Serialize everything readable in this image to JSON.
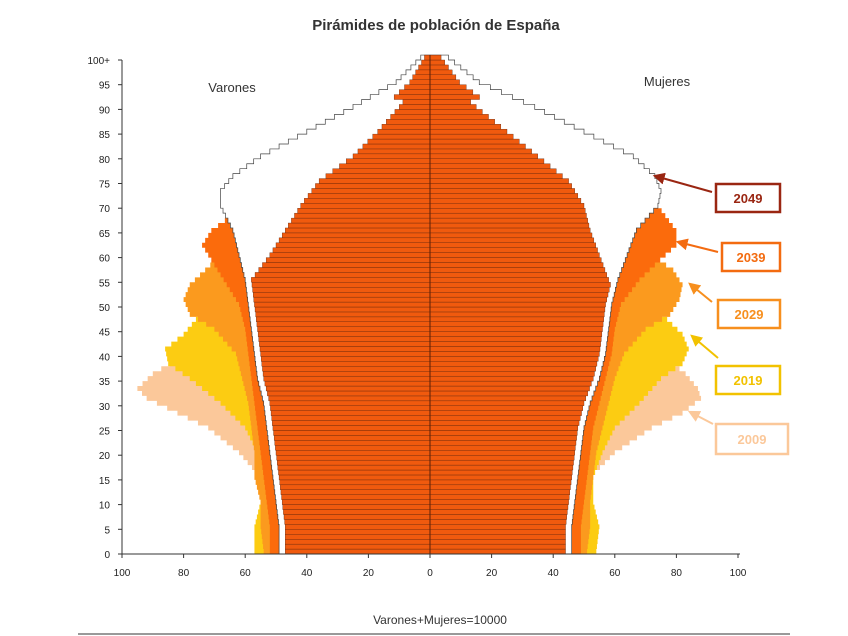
{
  "chart_data": {
    "type": "bar",
    "subtype": "population-pyramid",
    "title": "Pirámides de población de España",
    "left_label": "Varones",
    "right_label": "Mujeres",
    "xlabel": "Varones+Mujeres=10000",
    "xlim": [
      -100,
      100
    ],
    "ylim": [
      0,
      100
    ],
    "x_ticks": [
      "100",
      "80",
      "60",
      "40",
      "20",
      "0",
      "20",
      "40",
      "60",
      "80",
      "100"
    ],
    "y_ticks": [
      "0",
      "5",
      "10",
      "15",
      "20",
      "25",
      "30",
      "35",
      "40",
      "45",
      "50",
      "55",
      "60",
      "65",
      "70",
      "75",
      "80",
      "85",
      "90",
      "95",
      "100+"
    ],
    "series": [
      {
        "name": "2009",
        "color": "#fbc89a",
        "label_color": "#fbc89a",
        "males": [
          [
            0,
            55
          ],
          [
            5,
            55
          ],
          [
            10,
            53
          ],
          [
            15,
            55
          ],
          [
            20,
            62
          ],
          [
            25,
            72
          ],
          [
            28,
            82
          ],
          [
            31,
            92
          ],
          [
            33,
            95
          ],
          [
            36,
            90
          ],
          [
            40,
            79
          ],
          [
            45,
            70
          ],
          [
            50,
            65
          ],
          [
            55,
            58
          ],
          [
            60,
            52
          ],
          [
            65,
            47
          ],
          [
            70,
            42
          ],
          [
            75,
            36
          ],
          [
            80,
            25
          ],
          [
            85,
            17
          ],
          [
            90,
            10
          ],
          [
            95,
            4
          ],
          [
            100,
            1
          ]
        ],
        "females": [
          [
            0,
            52
          ],
          [
            5,
            53
          ],
          [
            10,
            51
          ],
          [
            15,
            52
          ],
          [
            20,
            60
          ],
          [
            25,
            72
          ],
          [
            28,
            82
          ],
          [
            31,
            88
          ],
          [
            33,
            87
          ],
          [
            36,
            83
          ],
          [
            40,
            75
          ],
          [
            45,
            68
          ],
          [
            50,
            63
          ],
          [
            55,
            58
          ],
          [
            60,
            55
          ],
          [
            65,
            52
          ],
          [
            70,
            50
          ],
          [
            75,
            45
          ],
          [
            80,
            35
          ],
          [
            85,
            25
          ],
          [
            90,
            15
          ],
          [
            95,
            6
          ],
          [
            100,
            2
          ]
        ]
      },
      {
        "name": "2019",
        "color": "#fccc12",
        "label_color": "#f2c200",
        "males": [
          [
            0,
            57
          ],
          [
            5,
            57
          ],
          [
            10,
            55
          ],
          [
            15,
            56
          ],
          [
            20,
            56
          ],
          [
            25,
            60
          ],
          [
            30,
            68
          ],
          [
            35,
            78
          ],
          [
            38,
            85
          ],
          [
            41,
            86
          ],
          [
            44,
            80
          ],
          [
            47,
            76
          ],
          [
            50,
            70
          ],
          [
            55,
            62
          ],
          [
            60,
            55
          ],
          [
            65,
            48
          ],
          [
            70,
            42
          ],
          [
            75,
            36
          ],
          [
            80,
            25
          ],
          [
            85,
            17
          ],
          [
            90,
            10
          ],
          [
            95,
            4
          ],
          [
            100,
            1
          ]
        ],
        "females": [
          [
            0,
            54
          ],
          [
            5,
            55
          ],
          [
            10,
            53
          ],
          [
            15,
            53
          ],
          [
            20,
            56
          ],
          [
            25,
            60
          ],
          [
            30,
            68
          ],
          [
            35,
            75
          ],
          [
            38,
            82
          ],
          [
            41,
            84
          ],
          [
            44,
            82
          ],
          [
            47,
            77
          ],
          [
            50,
            70
          ],
          [
            55,
            62
          ],
          [
            60,
            57
          ],
          [
            65,
            53
          ],
          [
            70,
            50
          ],
          [
            75,
            45
          ],
          [
            80,
            35
          ],
          [
            85,
            25
          ],
          [
            90,
            15
          ],
          [
            95,
            6
          ],
          [
            100,
            2
          ]
        ]
      },
      {
        "name": "2029",
        "color": "#fb9a1e",
        "label_color": "#f78f1e",
        "males": [
          [
            0,
            54
          ],
          [
            5,
            55
          ],
          [
            10,
            55
          ],
          [
            15,
            57
          ],
          [
            20,
            57
          ],
          [
            25,
            58
          ],
          [
            30,
            59
          ],
          [
            35,
            61
          ],
          [
            40,
            63
          ],
          [
            45,
            70
          ],
          [
            48,
            78
          ],
          [
            51,
            80
          ],
          [
            54,
            78
          ],
          [
            57,
            73
          ],
          [
            60,
            68
          ],
          [
            65,
            58
          ],
          [
            70,
            48
          ],
          [
            75,
            38
          ],
          [
            80,
            27
          ],
          [
            85,
            18
          ],
          [
            90,
            10
          ],
          [
            95,
            4
          ],
          [
            100,
            1
          ]
        ],
        "females": [
          [
            0,
            51
          ],
          [
            5,
            52
          ],
          [
            10,
            52
          ],
          [
            15,
            53
          ],
          [
            20,
            54
          ],
          [
            25,
            56
          ],
          [
            30,
            58
          ],
          [
            35,
            60
          ],
          [
            40,
            63
          ],
          [
            45,
            70
          ],
          [
            48,
            78
          ],
          [
            51,
            81
          ],
          [
            54,
            82
          ],
          [
            57,
            79
          ],
          [
            60,
            72
          ],
          [
            65,
            62
          ],
          [
            70,
            55
          ],
          [
            75,
            47
          ],
          [
            80,
            36
          ],
          [
            85,
            26
          ],
          [
            90,
            16
          ],
          [
            95,
            6
          ],
          [
            100,
            2
          ]
        ]
      },
      {
        "name": "2039",
        "color": "#fb6b0c",
        "label_color": "#f36b10",
        "males": [
          [
            0,
            52
          ],
          [
            5,
            52
          ],
          [
            10,
            53
          ],
          [
            15,
            54
          ],
          [
            20,
            55
          ],
          [
            25,
            56
          ],
          [
            30,
            57
          ],
          [
            35,
            58
          ],
          [
            40,
            59
          ],
          [
            45,
            60
          ],
          [
            50,
            62
          ],
          [
            55,
            67
          ],
          [
            58,
            70
          ],
          [
            62,
            74
          ],
          [
            65,
            71
          ],
          [
            70,
            60
          ],
          [
            75,
            46
          ],
          [
            80,
            32
          ],
          [
            85,
            21
          ],
          [
            90,
            12
          ],
          [
            95,
            5
          ],
          [
            100,
            2
          ]
        ],
        "females": [
          [
            0,
            49
          ],
          [
            5,
            49
          ],
          [
            10,
            50
          ],
          [
            15,
            51
          ],
          [
            20,
            52
          ],
          [
            25,
            53
          ],
          [
            30,
            55
          ],
          [
            35,
            57
          ],
          [
            40,
            59
          ],
          [
            45,
            60
          ],
          [
            50,
            62
          ],
          [
            55,
            68
          ],
          [
            58,
            73
          ],
          [
            62,
            80
          ],
          [
            65,
            80
          ],
          [
            70,
            74
          ],
          [
            75,
            63
          ],
          [
            80,
            48
          ],
          [
            85,
            33
          ],
          [
            90,
            20
          ],
          [
            95,
            9
          ],
          [
            100,
            3
          ]
        ]
      },
      {
        "name": "2049",
        "color": "#ffffff",
        "label_color": "#9a2612",
        "males": [
          [
            0,
            49
          ],
          [
            5,
            49
          ],
          [
            10,
            50
          ],
          [
            15,
            51
          ],
          [
            20,
            52
          ],
          [
            25,
            53
          ],
          [
            30,
            54
          ],
          [
            35,
            56
          ],
          [
            40,
            57
          ],
          [
            45,
            58
          ],
          [
            50,
            59
          ],
          [
            55,
            60
          ],
          [
            60,
            62
          ],
          [
            65,
            64
          ],
          [
            70,
            68
          ],
          [
            73,
            68
          ],
          [
            76,
            64
          ],
          [
            80,
            55
          ],
          [
            85,
            40
          ],
          [
            90,
            25
          ],
          [
            95,
            11
          ],
          [
            100,
            3
          ]
        ],
        "females": [
          [
            0,
            46
          ],
          [
            5,
            46
          ],
          [
            10,
            47
          ],
          [
            15,
            48
          ],
          [
            20,
            49
          ],
          [
            25,
            50
          ],
          [
            30,
            52
          ],
          [
            35,
            55
          ],
          [
            40,
            57
          ],
          [
            45,
            58
          ],
          [
            50,
            59
          ],
          [
            55,
            61
          ],
          [
            60,
            64
          ],
          [
            65,
            67
          ],
          [
            70,
            74
          ],
          [
            73,
            75
          ],
          [
            76,
            73
          ],
          [
            80,
            66
          ],
          [
            85,
            50
          ],
          [
            90,
            34
          ],
          [
            95,
            16
          ],
          [
            100,
            6
          ]
        ]
      }
    ],
    "inner_color": "#f05a0e",
    "grid": false,
    "legend": "right, with arrows pointing to each pyramid outline"
  }
}
